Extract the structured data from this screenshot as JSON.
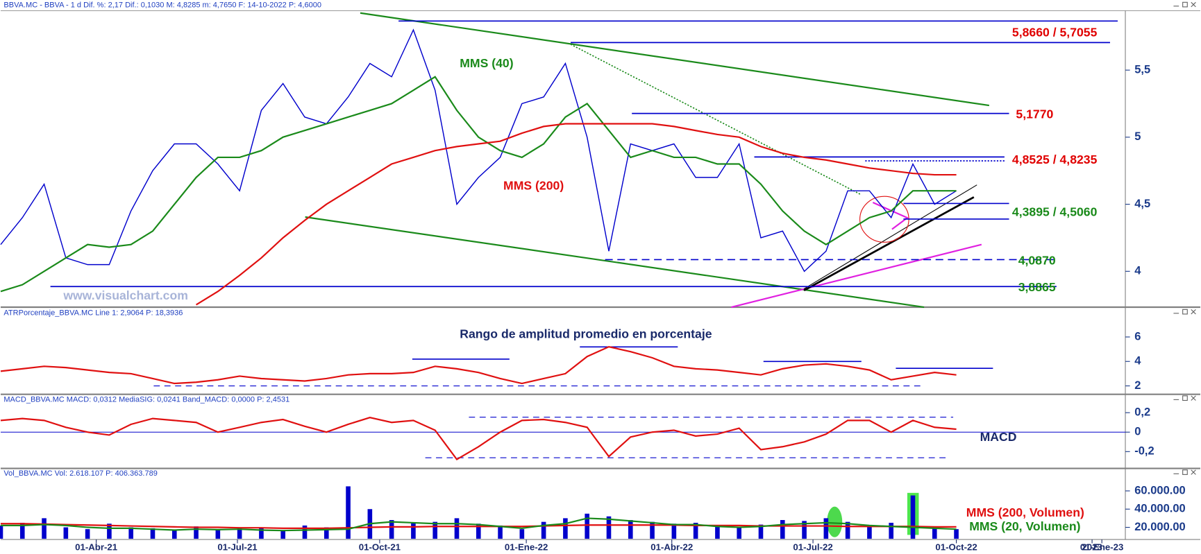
{
  "chart_data": [
    {
      "type": "line",
      "header": "BBVA.MC - BBVA - 1 d Dif. %: 2,17 Dif.: 0,1030 M: 4,8285 m: 4,7650 F: 14-10-2022 P: 4,6000",
      "watermark": "www.visualchart.com",
      "x": [
        0,
        2,
        4,
        6,
        8,
        10,
        12,
        14,
        16,
        18,
        20,
        22,
        24,
        26,
        28,
        30,
        32,
        34,
        36,
        38,
        40,
        42,
        44,
        46,
        48,
        50,
        52,
        54,
        56,
        58,
        60,
        62,
        64,
        66,
        68,
        70,
        72,
        74,
        76,
        78,
        80,
        82,
        84,
        86,
        88
      ],
      "xlim": [
        0,
        103
      ],
      "ylim": [
        3.744,
        5.943
      ],
      "yticks": [
        4,
        {
          "value": 4.5,
          "label": "4,5"
        },
        5,
        {
          "value": 5.5,
          "label": "5,5"
        }
      ],
      "grid": false,
      "series": [
        {
          "color": "#0000cc",
          "values": [
            4.2,
            4.4,
            4.65,
            4.1,
            4.05,
            4.05,
            4.45,
            4.75,
            4.95,
            4.95,
            4.8,
            4.6,
            5.2,
            5.4,
            5.15,
            5.1,
            5.3,
            5.55,
            5.45,
            5.8,
            5.35,
            4.5,
            4.7,
            4.85,
            5.25,
            5.3,
            5.55,
            5.0,
            4.15,
            4.95,
            4.9,
            4.95,
            4.7,
            4.7,
            4.95,
            4.25,
            4.3,
            4.0,
            4.15,
            4.6,
            4.6,
            4.4,
            4.8,
            4.5,
            4.6
          ]
        },
        {
          "name": "MMS (40)",
          "color": "#1a8a1a",
          "values": [
            3.85,
            3.9,
            4.0,
            4.1,
            4.2,
            4.18,
            4.2,
            4.3,
            4.5,
            4.7,
            4.85,
            4.85,
            4.9,
            5.0,
            5.05,
            5.1,
            5.15,
            5.2,
            5.25,
            5.35,
            5.45,
            5.2,
            5.0,
            4.9,
            4.85,
            4.95,
            5.15,
            5.25,
            5.05,
            4.85,
            4.9,
            4.85,
            4.85,
            4.8,
            4.8,
            4.65,
            4.45,
            4.3,
            4.2,
            4.3,
            4.4,
            4.45,
            4.6,
            4.6,
            4.6
          ]
        },
        {
          "name": "MMS (200)",
          "color": "#e01010",
          "values": [
            null,
            null,
            null,
            null,
            null,
            null,
            null,
            null,
            null,
            3.75,
            3.85,
            3.97,
            4.1,
            4.25,
            4.38,
            4.5,
            4.6,
            4.7,
            4.8,
            4.85,
            4.9,
            4.93,
            4.95,
            4.97,
            5.03,
            5.08,
            5.1,
            5.1,
            5.1,
            5.1,
            5.1,
            5.08,
            5.05,
            5.02,
            5.0,
            4.93,
            4.88,
            4.85,
            4.83,
            4.8,
            4.77,
            4.75,
            4.73,
            4.72,
            4.72
          ]
        }
      ],
      "levels": [
        {
          "label": "5,8660 / 5,7055",
          "values": [
            5.866,
            5.7055
          ],
          "color": "#e00000"
        },
        {
          "label": "5,1770",
          "values": [
            5.177
          ],
          "color": "#e00000"
        },
        {
          "label": "4,8525 / 4,8235",
          "values": [
            4.8525,
            4.8235
          ],
          "color": "#e00000"
        },
        {
          "label": "4,3895 / 4,5060",
          "values": [
            4.3895,
            4.506
          ],
          "color": "#1a8a1a"
        },
        {
          "label": "4,0870",
          "values": [
            4.087
          ],
          "color": "#1a8a1a"
        },
        {
          "label": "3,8865",
          "values": [
            3.8865
          ],
          "color": "#1a8a1a"
        }
      ]
    },
    {
      "type": "line",
      "header": "ATRPorcentaje_BBVA.MC Line 1: 2,9064 P: 18,3936",
      "title": "Rango de amplitud promedio en porcentaje",
      "x": [
        0,
        2,
        4,
        6,
        8,
        10,
        12,
        14,
        16,
        18,
        20,
        22,
        24,
        26,
        28,
        30,
        32,
        34,
        36,
        38,
        40,
        42,
        44,
        46,
        48,
        50,
        52,
        54,
        56,
        58,
        60,
        62,
        64,
        66,
        68,
        70,
        72,
        74,
        76,
        78,
        80,
        82,
        84,
        86,
        88
      ],
      "xlim": [
        0,
        103
      ],
      "ylim": [
        1.375,
        8.31
      ],
      "yticks": [
        2,
        4,
        6
      ],
      "grid": false,
      "series": [
        {
          "color": "#e01010",
          "values": [
            3.2,
            3.4,
            3.6,
            3.5,
            3.3,
            3.1,
            3.0,
            2.6,
            2.2,
            2.3,
            2.5,
            2.8,
            2.6,
            2.5,
            2.4,
            2.6,
            2.9,
            3.0,
            3.0,
            3.1,
            3.6,
            3.4,
            3.1,
            2.6,
            2.2,
            2.6,
            3.0,
            4.4,
            5.2,
            4.8,
            4.3,
            3.6,
            3.4,
            3.3,
            3.1,
            2.9,
            3.4,
            3.7,
            3.8,
            3.6,
            3.3,
            2.5,
            2.8,
            3.1,
            2.9
          ]
        }
      ]
    },
    {
      "type": "line",
      "header": "MACD_BBVA.MC MACD: 0,0312 MediaSIG: 0,0241 Band_MACD: 0,0000 P: 2,4531",
      "title": "MACD",
      "x": [
        0,
        2,
        4,
        6,
        8,
        10,
        12,
        14,
        16,
        18,
        20,
        22,
        24,
        26,
        28,
        30,
        32,
        34,
        36,
        38,
        40,
        42,
        44,
        46,
        48,
        50,
        52,
        54,
        56,
        58,
        60,
        62,
        64,
        66,
        68,
        70,
        72,
        74,
        76,
        78,
        80,
        82,
        84,
        86,
        88
      ],
      "xlim": [
        0,
        103
      ],
      "ylim": [
        -0.365,
        0.381
      ],
      "yticks": [
        {
          "value": -0.2,
          "label": "-0,2"
        },
        0,
        {
          "value": 0.2,
          "label": "0,2"
        }
      ],
      "grid": false,
      "zero_line": true,
      "series": [
        {
          "color": "#e01010",
          "values": [
            0.12,
            0.14,
            0.12,
            0.05,
            0,
            -0.03,
            0.08,
            0.14,
            0.12,
            0.1,
            0,
            0.05,
            0.1,
            0.13,
            0.06,
            0,
            0.08,
            0.15,
            0.1,
            0.12,
            0.02,
            -0.28,
            -0.15,
            0,
            0.12,
            0.13,
            0.1,
            0.05,
            -0.25,
            -0.05,
            0,
            0.02,
            -0.04,
            -0.02,
            0.04,
            -0.18,
            -0.15,
            -0.1,
            -0.02,
            0.12,
            0.12,
            0,
            0.12,
            0.05,
            0.03
          ]
        }
      ]
    },
    {
      "type": "bar",
      "header": "Vol_BBVA.MC Vol: 2.618.107 P: 406.363.789",
      "x": [
        0,
        2,
        4,
        6,
        8,
        10,
        12,
        14,
        16,
        18,
        20,
        22,
        24,
        26,
        28,
        30,
        32,
        34,
        36,
        38,
        40,
        42,
        44,
        46,
        48,
        50,
        52,
        54,
        56,
        58,
        60,
        62,
        64,
        66,
        68,
        70,
        72,
        74,
        76,
        78,
        80,
        82,
        84,
        86,
        88
      ],
      "xlim": [
        0,
        103
      ],
      "xticks": [
        {
          "value": 8.8,
          "label": "01-Abr-21"
        },
        {
          "value": 21.8,
          "label": "01-Jul-21"
        },
        {
          "value": 34.9,
          "label": "01-Oct-21"
        },
        {
          "value": 48.4,
          "label": "01-Ene-22"
        },
        {
          "value": 61.8,
          "label": "01-Abr-22"
        },
        {
          "value": 74.8,
          "label": "01-Jul-22"
        },
        {
          "value": 88.0,
          "label": "01-Oct-22"
        },
        {
          "value": 100.5,
          "label": "2023"
        },
        {
          "value": 101.4,
          "label": "01-Ene-23"
        }
      ],
      "ylim": [
        7500,
        83000
      ],
      "yticks": [
        {
          "value": 20000,
          "label": "20.000.00"
        },
        {
          "value": 40000,
          "label": "40.000.00"
        },
        {
          "value": 60000,
          "label": "60.000.00"
        }
      ],
      "grid": false,
      "series": [
        {
          "type": "bar",
          "color": "#0000cc",
          "values": [
            22000,
            25000,
            30000,
            20000,
            18000,
            24000,
            20000,
            19000,
            17000,
            21000,
            18000,
            20000,
            19000,
            17000,
            22000,
            20000,
            65000,
            40000,
            28000,
            25000,
            26000,
            30000,
            24000,
            22000,
            18000,
            26000,
            30000,
            35000,
            32000,
            28000,
            26000,
            24000,
            25000,
            22000,
            20000,
            23000,
            28000,
            27000,
            30000,
            26000,
            22000,
            25000,
            55000,
            20000,
            18000
          ]
        },
        {
          "type": "line",
          "name": "MMS (200, Volumen)",
          "color": "#e01010",
          "values": [
            24000,
            24000,
            23500,
            23000,
            22500,
            22000,
            21500,
            21000,
            20500,
            20000,
            20000,
            19500,
            19500,
            19000,
            19000,
            19000,
            19500,
            20000,
            20500,
            20500,
            21000,
            21000,
            21000,
            21000,
            21000,
            21500,
            22000,
            22500,
            22500,
            22500,
            22500,
            22500,
            22000,
            22000,
            22000,
            21500,
            21500,
            21500,
            21500,
            21000,
            21000,
            21000,
            21000,
            20500,
            20500
          ]
        },
        {
          "type": "line",
          "name": "MMS (20, Volumen)",
          "color": "#1a8a1a",
          "values": [
            22000,
            22000,
            23000,
            22000,
            20000,
            19000,
            19000,
            18000,
            17000,
            18000,
            17500,
            18000,
            17000,
            16500,
            17000,
            17500,
            18000,
            24000,
            26000,
            25000,
            24000,
            24000,
            23000,
            21000,
            19000,
            22000,
            24000,
            30000,
            29000,
            27000,
            25000,
            23000,
            23000,
            21000,
            20000,
            21000,
            23000,
            24000,
            25000,
            24000,
            22000,
            21000,
            20000,
            19000,
            18000
          ]
        }
      ]
    }
  ]
}
